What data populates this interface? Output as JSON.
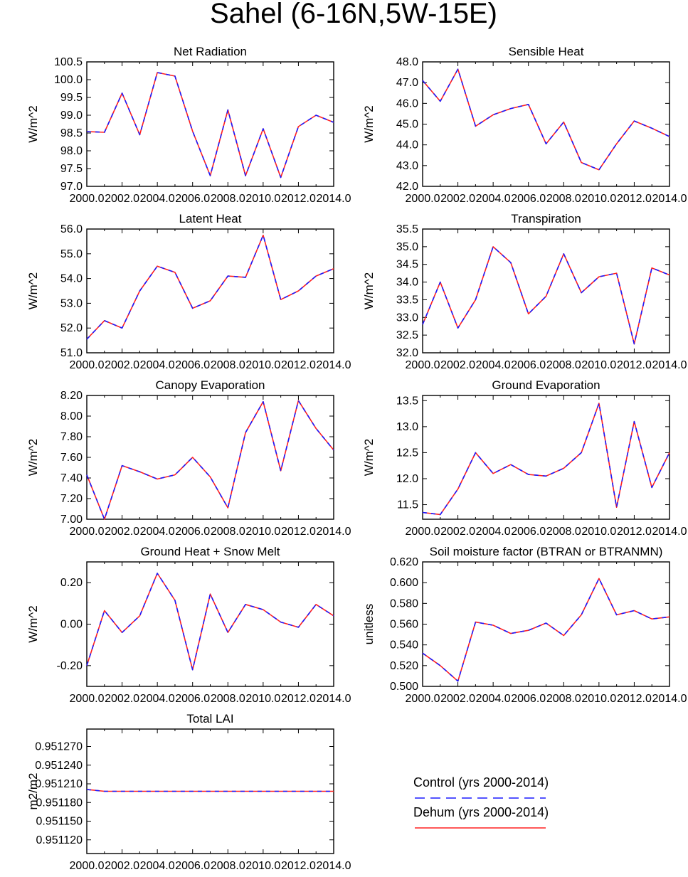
{
  "figure": {
    "title": "Sahel (6-16N,5W-15E)"
  },
  "colors": {
    "control": "#1a1aff",
    "dehum": "#ff2020",
    "axis": "#000000"
  },
  "legend": {
    "entries": [
      {
        "label": "Control (yrs 2000-2014)",
        "style": "dashed",
        "color": "#1a1aff"
      },
      {
        "label": "Dehum (yrs 2000-2014)",
        "style": "solid",
        "color": "#ff2020"
      }
    ]
  },
  "chart_data": [
    {
      "type": "line",
      "title": "Net Radiation",
      "ylabel": "W/m^2",
      "xlim": [
        2000,
        2014
      ],
      "xticks": [
        2000,
        2002,
        2004,
        2006,
        2008,
        2010,
        2012,
        2014
      ],
      "xtick_labels": [
        "2000.0",
        "2002.0",
        "2004.0",
        "2006.0",
        "2008.0",
        "2010.0",
        "2012.0",
        "2014.0"
      ],
      "ylim": [
        97.0,
        100.5
      ],
      "yticks": [
        97.0,
        97.5,
        98.0,
        98.5,
        99.0,
        99.5,
        100.0,
        100.5
      ],
      "ytick_labels": [
        "97.0",
        "97.5",
        "98.0",
        "98.5",
        "99.0",
        "99.5",
        "100.0",
        "100.5"
      ],
      "x": [
        2000,
        2001,
        2002,
        2003,
        2004,
        2005,
        2006,
        2007,
        2008,
        2009,
        2010,
        2011,
        2012,
        2013,
        2014
      ],
      "series": [
        {
          "name": "Control (yrs 2000-2014)",
          "values": [
            98.54,
            98.52,
            99.62,
            98.45,
            100.2,
            100.1,
            98.55,
            97.3,
            99.15,
            97.3,
            98.62,
            97.25,
            98.68,
            99.0,
            98.8
          ]
        },
        {
          "name": "Dehum (yrs 2000-2014)",
          "values": [
            98.54,
            98.52,
            99.62,
            98.45,
            100.2,
            100.1,
            98.55,
            97.3,
            99.15,
            97.3,
            98.62,
            97.25,
            98.68,
            99.0,
            98.8
          ]
        }
      ]
    },
    {
      "type": "line",
      "title": "Sensible Heat",
      "ylabel": "W/m^2",
      "xlim": [
        2000,
        2014
      ],
      "xticks": [
        2000,
        2002,
        2004,
        2006,
        2008,
        2010,
        2012,
        2014
      ],
      "xtick_labels": [
        "2000.0",
        "2002.0",
        "2004.0",
        "2006.0",
        "2008.0",
        "2010.0",
        "2012.0",
        "2014.0"
      ],
      "ylim": [
        42.0,
        48.0
      ],
      "yticks": [
        42.0,
        43.0,
        44.0,
        45.0,
        46.0,
        47.0,
        48.0
      ],
      "ytick_labels": [
        "42.0",
        "43.0",
        "44.0",
        "45.0",
        "46.0",
        "47.0",
        "48.0"
      ],
      "x": [
        2000,
        2001,
        2002,
        2003,
        2004,
        2005,
        2006,
        2007,
        2008,
        2009,
        2010,
        2011,
        2012,
        2013,
        2014
      ],
      "series": [
        {
          "name": "Control (yrs 2000-2014)",
          "values": [
            47.1,
            46.1,
            47.65,
            44.9,
            45.45,
            45.75,
            45.95,
            44.05,
            45.1,
            43.15,
            42.8,
            44.05,
            45.15,
            44.8,
            44.4
          ]
        },
        {
          "name": "Dehum (yrs 2000-2014)",
          "values": [
            47.1,
            46.1,
            47.65,
            44.9,
            45.45,
            45.75,
            45.95,
            44.05,
            45.1,
            43.15,
            42.8,
            44.05,
            45.15,
            44.8,
            44.4
          ]
        }
      ]
    },
    {
      "type": "line",
      "title": "Latent Heat",
      "ylabel": "W/m^2",
      "xlim": [
        2000,
        2014
      ],
      "xticks": [
        2000,
        2002,
        2004,
        2006,
        2008,
        2010,
        2012,
        2014
      ],
      "xtick_labels": [
        "2000.0",
        "2002.0",
        "2004.0",
        "2006.0",
        "2008.0",
        "2010.0",
        "2012.0",
        "2014.0"
      ],
      "ylim": [
        51.0,
        56.0
      ],
      "yticks": [
        51.0,
        52.0,
        53.0,
        54.0,
        55.0,
        56.0
      ],
      "ytick_labels": [
        "51.0",
        "52.0",
        "53.0",
        "54.0",
        "55.0",
        "56.0"
      ],
      "x": [
        2000,
        2001,
        2002,
        2003,
        2004,
        2005,
        2006,
        2007,
        2008,
        2009,
        2010,
        2011,
        2012,
        2013,
        2014
      ],
      "series": [
        {
          "name": "Control (yrs 2000-2014)",
          "values": [
            51.55,
            52.3,
            52.0,
            53.5,
            54.5,
            54.25,
            52.8,
            53.1,
            54.1,
            54.05,
            55.75,
            53.15,
            53.5,
            54.1,
            54.4
          ]
        },
        {
          "name": "Dehum (yrs 2000-2014)",
          "values": [
            51.55,
            52.3,
            52.0,
            53.5,
            54.5,
            54.25,
            52.8,
            53.1,
            54.1,
            54.05,
            55.75,
            53.15,
            53.5,
            54.1,
            54.4
          ]
        }
      ]
    },
    {
      "type": "line",
      "title": "Transpiration",
      "ylabel": "W/m^2",
      "xlim": [
        2000,
        2014
      ],
      "xticks": [
        2000,
        2002,
        2004,
        2006,
        2008,
        2010,
        2012,
        2014
      ],
      "xtick_labels": [
        "2000.0",
        "2002.0",
        "2004.0",
        "2006.0",
        "2008.0",
        "2010.0",
        "2012.0",
        "2014.0"
      ],
      "ylim": [
        32.0,
        35.5
      ],
      "yticks": [
        32.0,
        32.5,
        33.0,
        33.5,
        34.0,
        34.5,
        35.0,
        35.5
      ],
      "ytick_labels": [
        "32.0",
        "32.5",
        "33.0",
        "33.5",
        "34.0",
        "34.5",
        "35.0",
        "35.5"
      ],
      "x": [
        2000,
        2001,
        2002,
        2003,
        2004,
        2005,
        2006,
        2007,
        2008,
        2009,
        2010,
        2011,
        2012,
        2013,
        2014
      ],
      "series": [
        {
          "name": "Control (yrs 2000-2014)",
          "values": [
            32.8,
            34.0,
            32.7,
            33.5,
            35.0,
            34.55,
            33.1,
            33.6,
            34.8,
            33.7,
            34.15,
            34.25,
            32.25,
            34.4,
            34.2
          ]
        },
        {
          "name": "Dehum (yrs 2000-2014)",
          "values": [
            32.8,
            34.0,
            32.7,
            33.5,
            35.0,
            34.55,
            33.1,
            33.6,
            34.8,
            33.7,
            34.15,
            34.25,
            32.25,
            34.4,
            34.2
          ]
        }
      ]
    },
    {
      "type": "line",
      "title": "Canopy Evaporation",
      "ylabel": "W/m^2",
      "xlim": [
        2000,
        2014
      ],
      "xticks": [
        2000,
        2002,
        2004,
        2006,
        2008,
        2010,
        2012,
        2014
      ],
      "xtick_labels": [
        "2000.0",
        "2002.0",
        "2004.0",
        "2006.0",
        "2008.0",
        "2010.0",
        "2012.0",
        "2014.0"
      ],
      "ylim": [
        7.0,
        8.2
      ],
      "yticks": [
        7.0,
        7.2,
        7.4,
        7.6,
        7.8,
        8.0,
        8.2
      ],
      "ytick_labels": [
        "7.00",
        "7.20",
        "7.40",
        "7.60",
        "7.80",
        "8.00",
        "8.20"
      ],
      "x": [
        2000,
        2001,
        2002,
        2003,
        2004,
        2005,
        2006,
        2007,
        2008,
        2009,
        2010,
        2011,
        2012,
        2013,
        2014
      ],
      "series": [
        {
          "name": "Control (yrs 2000-2014)",
          "values": [
            7.43,
            7.0,
            7.52,
            7.46,
            7.39,
            7.43,
            7.6,
            7.41,
            7.11,
            7.84,
            8.14,
            7.47,
            8.15,
            7.88,
            7.67
          ]
        },
        {
          "name": "Dehum (yrs 2000-2014)",
          "values": [
            7.43,
            7.0,
            7.52,
            7.46,
            7.39,
            7.43,
            7.6,
            7.41,
            7.11,
            7.84,
            8.14,
            7.47,
            8.15,
            7.88,
            7.67
          ]
        }
      ]
    },
    {
      "type": "line",
      "title": "Ground Evaporation",
      "ylabel": "W/m^2",
      "xlim": [
        2000,
        2014
      ],
      "xticks": [
        2000,
        2002,
        2004,
        2006,
        2008,
        2010,
        2012,
        2014
      ],
      "xtick_labels": [
        "2000.0",
        "2002.0",
        "2004.0",
        "2006.0",
        "2008.0",
        "2010.0",
        "2012.0",
        "2014.0"
      ],
      "ylim": [
        11.22,
        13.6
      ],
      "yticks": [
        11.5,
        12.0,
        12.5,
        13.0,
        13.5
      ],
      "ytick_labels": [
        "11.5",
        "12.0",
        "12.5",
        "13.0",
        "13.5"
      ],
      "x": [
        2000,
        2001,
        2002,
        2003,
        2004,
        2005,
        2006,
        2007,
        2008,
        2009,
        2010,
        2011,
        2012,
        2013,
        2014
      ],
      "series": [
        {
          "name": "Control (yrs 2000-2014)",
          "values": [
            11.35,
            11.31,
            11.8,
            12.5,
            12.1,
            12.27,
            12.08,
            12.05,
            12.2,
            12.5,
            13.45,
            11.45,
            13.1,
            11.83,
            12.5
          ]
        },
        {
          "name": "Dehum (yrs 2000-2014)",
          "values": [
            11.35,
            11.31,
            11.8,
            12.5,
            12.1,
            12.27,
            12.08,
            12.05,
            12.2,
            12.5,
            13.45,
            11.45,
            13.1,
            11.83,
            12.5
          ]
        }
      ]
    },
    {
      "type": "line",
      "title": "Ground Heat + Snow Melt",
      "ylabel": "W/m^2",
      "xlim": [
        2000,
        2014
      ],
      "xticks": [
        2000,
        2002,
        2004,
        2006,
        2008,
        2010,
        2012,
        2014
      ],
      "xtick_labels": [
        "2000.0",
        "2002.0",
        "2004.0",
        "2006.0",
        "2008.0",
        "2010.0",
        "2012.0",
        "2014.0"
      ],
      "ylim": [
        -0.3,
        0.3
      ],
      "yticks": [
        -0.2,
        0.0,
        0.2
      ],
      "ytick_labels": [
        "-0.20",
        "0.00",
        "0.20"
      ],
      "x": [
        2000,
        2001,
        2002,
        2003,
        2004,
        2005,
        2006,
        2007,
        2008,
        2009,
        2010,
        2011,
        2012,
        2013,
        2014
      ],
      "series": [
        {
          "name": "Control (yrs 2000-2014)",
          "values": [
            -0.2,
            0.065,
            -0.04,
            0.04,
            0.245,
            0.115,
            -0.22,
            0.145,
            -0.04,
            0.095,
            0.07,
            0.01,
            -0.015,
            0.095,
            0.04
          ]
        },
        {
          "name": "Dehum (yrs 2000-2014)",
          "values": [
            -0.2,
            0.065,
            -0.04,
            0.04,
            0.245,
            0.115,
            -0.22,
            0.145,
            -0.04,
            0.095,
            0.07,
            0.01,
            -0.015,
            0.095,
            0.04
          ]
        }
      ]
    },
    {
      "type": "line",
      "title": "Soil moisture factor (BTRAN or BTRANMN)",
      "ylabel": "unitless",
      "xlim": [
        2000,
        2014
      ],
      "xticks": [
        2000,
        2002,
        2004,
        2006,
        2008,
        2010,
        2012,
        2014
      ],
      "xtick_labels": [
        "2000.0",
        "2002.0",
        "2004.0",
        "2006.0",
        "2008.0",
        "2010.0",
        "2012.0",
        "2014.0"
      ],
      "ylim": [
        0.5,
        0.62
      ],
      "yticks": [
        0.5,
        0.52,
        0.54,
        0.56,
        0.58,
        0.6,
        0.62
      ],
      "ytick_labels": [
        "0.500",
        "0.520",
        "0.540",
        "0.560",
        "0.580",
        "0.600",
        "0.620"
      ],
      "x": [
        2000,
        2001,
        2002,
        2003,
        2004,
        2005,
        2006,
        2007,
        2008,
        2009,
        2010,
        2011,
        2012,
        2013,
        2014
      ],
      "series": [
        {
          "name": "Control (yrs 2000-2014)",
          "values": [
            0.532,
            0.52,
            0.505,
            0.562,
            0.559,
            0.551,
            0.554,
            0.561,
            0.549,
            0.569,
            0.604,
            0.569,
            0.573,
            0.565,
            0.567
          ]
        },
        {
          "name": "Dehum (yrs 2000-2014)",
          "values": [
            0.532,
            0.52,
            0.505,
            0.562,
            0.559,
            0.551,
            0.554,
            0.561,
            0.549,
            0.569,
            0.604,
            0.569,
            0.573,
            0.565,
            0.567
          ]
        }
      ]
    },
    {
      "type": "line",
      "title": "Total LAI",
      "ylabel": "m2/m2",
      "xlim": [
        2000,
        2014
      ],
      "xticks": [
        2000,
        2002,
        2004,
        2006,
        2008,
        2010,
        2012,
        2014
      ],
      "xtick_labels": [
        "2000.0",
        "2002.0",
        "2004.0",
        "2006.0",
        "2008.0",
        "2010.0",
        "2012.0",
        "2014.0"
      ],
      "ylim": [
        0.951098,
        0.951298
      ],
      "yticks": [
        0.95112,
        0.95115,
        0.95118,
        0.95121,
        0.95124,
        0.95127
      ],
      "ytick_labels": [
        "0.951120",
        "0.951150",
        "0.951180",
        "0.951210",
        "0.951240",
        "0.951270"
      ],
      "x": [
        2000,
        2001,
        2002,
        2003,
        2004,
        2005,
        2006,
        2007,
        2008,
        2009,
        2010,
        2011,
        2012,
        2013,
        2014
      ],
      "series": [
        {
          "name": "Control (yrs 2000-2014)",
          "values": [
            0.951201,
            0.951198,
            0.951198,
            0.951198,
            0.951198,
            0.951198,
            0.951198,
            0.951198,
            0.951198,
            0.951198,
            0.951198,
            0.951198,
            0.951198,
            0.951198,
            0.951198
          ]
        },
        {
          "name": "Dehum (yrs 2000-2014)",
          "values": [
            0.951201,
            0.951198,
            0.951198,
            0.951198,
            0.951198,
            0.951198,
            0.951198,
            0.951198,
            0.951198,
            0.951198,
            0.951198,
            0.951198,
            0.951198,
            0.951198,
            0.951198
          ]
        }
      ]
    }
  ]
}
